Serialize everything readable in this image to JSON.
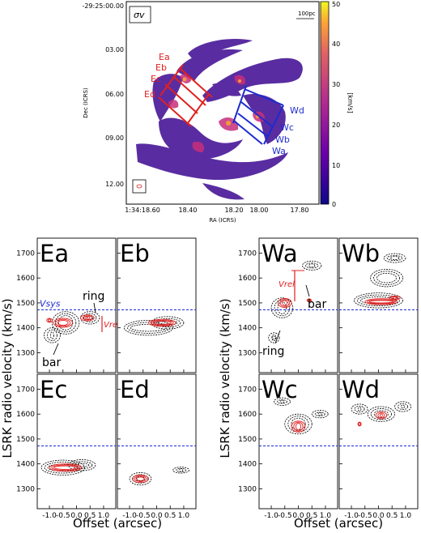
{
  "map": {
    "sigma_label": "σv",
    "scalebar_label": "100pc",
    "colorbar_unit": "[km/s]",
    "colorbar_ticks": [
      "0",
      "10",
      "20",
      "30",
      "40",
      "50"
    ],
    "colorbar_range": [
      0,
      50
    ],
    "colors": {
      "low": "#1a0c5c",
      "mid": "#c72f7b",
      "high": "#f2e04a"
    },
    "dec_label": "Dec (ICRS)",
    "ra_label": "RA (ICRS)",
    "dec_ticks": [
      "-29:25:00.00",
      "03.00",
      "06.00",
      "09.00",
      "12.00"
    ],
    "ra_ticks": [
      "1:34:18.60",
      "18.40",
      "18.20",
      "18.00",
      "17.80"
    ],
    "cuts_east": [
      "Ea",
      "Eb",
      "Ec",
      "Ed"
    ],
    "cuts_west": [
      "Wd",
      "Wc",
      "Wb",
      "Wa"
    ],
    "east_color": "#e0201f",
    "west_color": "#1c2bd0"
  },
  "pv": {
    "ylabel": "LSRK radio velocity (km/s)",
    "xlabel": "Offset (arcsec)",
    "x_ticks": [
      "-1.0",
      "-0.5",
      "0.0",
      "0.5",
      "1.0"
    ],
    "y_ticks": [
      "1700",
      "1600",
      "1500",
      "1400",
      "1300"
    ],
    "vsys_label": "Vsys",
    "vsys_value": 1472,
    "vrel_label": "Vrel",
    "panels": [
      {
        "name": "Ea",
        "ring_label": "ring",
        "bar_label": "bar"
      },
      {
        "name": "Eb"
      },
      {
        "name": "Ec"
      },
      {
        "name": "Ed"
      },
      {
        "name": "Wa",
        "ring_label": "ring",
        "bar_label": "bar"
      },
      {
        "name": "Wb"
      },
      {
        "name": "Wc"
      },
      {
        "name": "Wd"
      }
    ]
  }
}
